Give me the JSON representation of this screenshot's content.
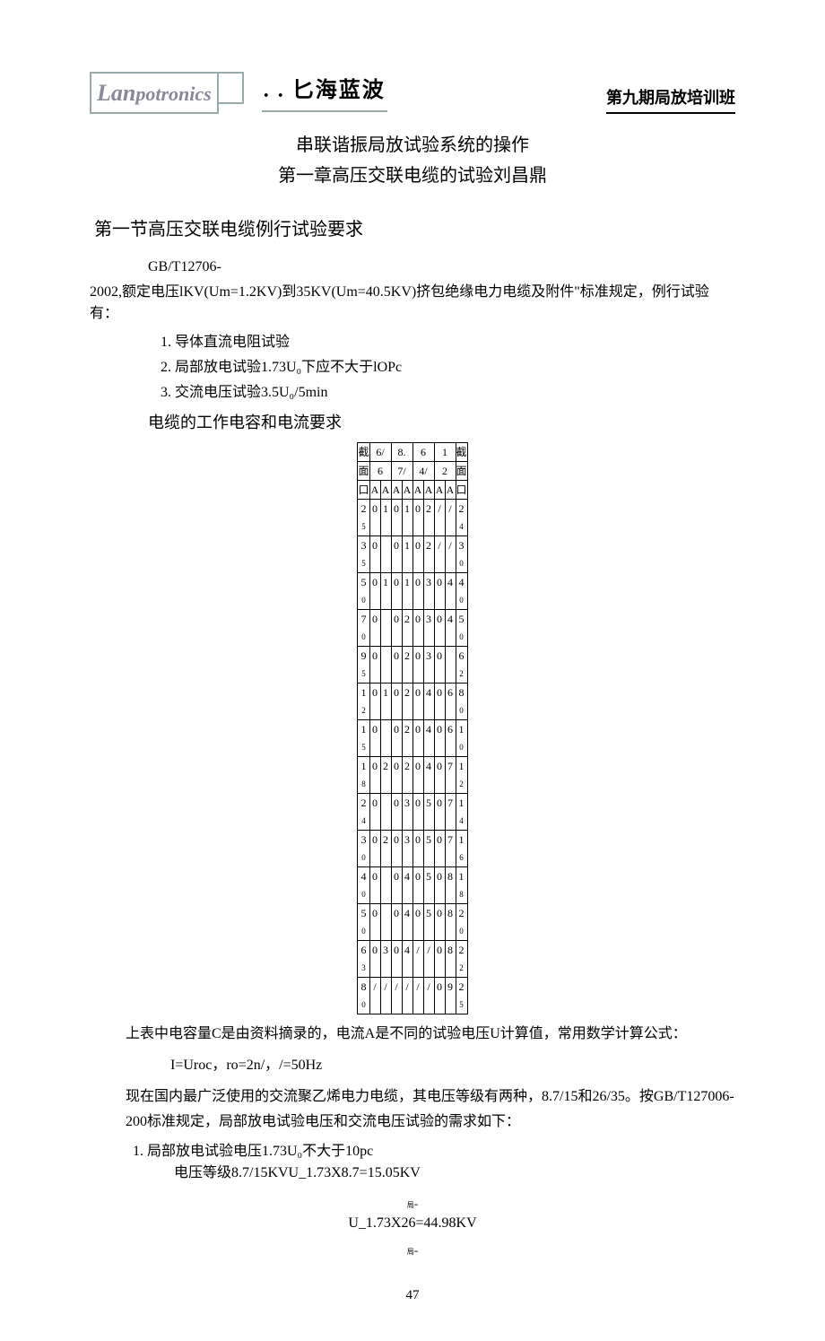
{
  "header": {
    "logo_text": "Lanpotronics",
    "logo_cn_prefix": "匕",
    "logo_cn": "海蓝波",
    "right_text": "第九期局放培训班"
  },
  "title": {
    "line1": "串联谐振局放试验系统的操作",
    "line2": "第一章高压交联电缆的试验刘昌鼎"
  },
  "section1": {
    "title": "第一节高压交联电缆例行试验要求",
    "standard_ref": "GB/T12706-",
    "standard_body": "2002,额定电压lKV(Um=1.2KV)到35KV(Um=40.5KV)挤包绝缘电力电缆及附件\"标准规定，例行试验有：",
    "items": [
      "导体直流电阻试验",
      "局部放电试验1.73U₀下应不大于lOPc",
      "交流电压试验3.5U₀/5min"
    ],
    "table_title": "电缆的工作电容和电流要求"
  },
  "table": {
    "header_row1": [
      "截",
      "6/",
      "",
      "8.",
      "",
      "6",
      "",
      "1",
      "",
      "截"
    ],
    "header_row1b": [
      "面",
      "6",
      "",
      "7/",
      "",
      "4/",
      "",
      "2",
      "",
      "面"
    ],
    "header_row2": [
      "口",
      "A",
      "A",
      "A",
      "A",
      "A",
      "A",
      "A",
      "A",
      "口"
    ],
    "rows": [
      [
        "2",
        "0",
        "1",
        "0",
        "1",
        "0",
        "2",
        "/",
        "/",
        "2"
      ],
      [
        "5",
        "",
        "",
        "",
        "",
        "",
        "",
        "",
        "",
        "4"
      ],
      [
        "3",
        "0",
        "",
        "0",
        "1",
        "0",
        "2",
        "/",
        "/",
        "3"
      ],
      [
        "5",
        "",
        "",
        "",
        "",
        "",
        "",
        "",
        "",
        "0"
      ],
      [
        "5",
        "0",
        "1",
        "0",
        "1",
        "0",
        "3",
        "0",
        "4",
        "4"
      ],
      [
        "0",
        "",
        "",
        "",
        "",
        "",
        "",
        "",
        "",
        "0"
      ],
      [
        "7",
        "0",
        "",
        "0",
        "2",
        "0",
        "3",
        "0",
        "4",
        "5"
      ],
      [
        "0",
        "",
        "",
        "",
        "",
        "",
        "",
        "",
        "",
        "0"
      ],
      [
        "9",
        "0",
        "",
        "0",
        "2",
        "0",
        "3",
        "0",
        "",
        "6"
      ],
      [
        "5",
        "",
        "",
        "",
        "",
        "",
        "",
        "",
        "",
        "2"
      ],
      [
        "1",
        "0",
        "1",
        "0",
        "2",
        "0",
        "4",
        "0",
        "6",
        "8"
      ],
      [
        "2",
        "",
        "",
        "",
        "",
        "",
        "",
        "",
        "",
        "0"
      ],
      [
        "1",
        "0",
        "",
        "0",
        "2",
        "0",
        "4",
        "0",
        "6",
        "1"
      ],
      [
        "5",
        "",
        "",
        "",
        "",
        "",
        "",
        "",
        "",
        "0"
      ],
      [
        "1",
        "0",
        "2",
        "0",
        "2",
        "0",
        "4",
        "0",
        "7",
        "1"
      ],
      [
        "8",
        "",
        "",
        "",
        "",
        "",
        "",
        "",
        "",
        "2"
      ],
      [
        "2",
        "0",
        "",
        "0",
        "3",
        "0",
        "5",
        "0",
        "7",
        "1"
      ],
      [
        "4",
        "",
        "",
        "",
        "",
        "",
        "",
        "",
        "",
        "4"
      ],
      [
        "3",
        "0",
        "2",
        "0",
        "3",
        "0",
        "5",
        "0",
        "7",
        "1"
      ],
      [
        "0",
        "",
        "",
        "",
        "",
        "",
        "",
        "",
        "",
        "6"
      ],
      [
        "4",
        "0",
        "",
        "0",
        "4",
        "0",
        "5",
        "0",
        "8",
        "1"
      ],
      [
        "0",
        "",
        "",
        "",
        "",
        "",
        "",
        "",
        "",
        "8"
      ],
      [
        "5",
        "0",
        "",
        "0",
        "4",
        "0",
        "5",
        "0",
        "8",
        "2"
      ],
      [
        "0",
        "",
        "",
        "",
        "",
        "",
        "",
        "",
        "",
        "0"
      ],
      [
        "6",
        "0",
        "3",
        "0",
        "4",
        "/",
        "/",
        "0",
        "8",
        "2"
      ],
      [
        "3",
        "",
        "",
        "",
        "",
        "",
        "",
        "",
        "",
        "2"
      ],
      [
        "8",
        "/",
        "/",
        "/",
        "/",
        "/",
        "/",
        "0",
        "9",
        "2"
      ],
      [
        "0",
        "",
        "",
        "",
        "",
        "",
        "",
        "",
        "",
        "5"
      ]
    ]
  },
  "body": {
    "p1": "上表中电容量C是由资料摘录的，电流A是不同的试验电压U计算值，常用数学计算公式：",
    "formula1": "I=Uroc，ro=2n/，/=50Hz",
    "p2": "现在国内最广泛使用的交流聚乙烯电力电缆，其电压等级有两种，8.7/15和26/35。按GB/T127006-200标准规定，局部放电试验电压和交流电压试验的需求如下：",
    "calc1_title": "局部放电试验电压1.73U₀不大于10pc",
    "calc1_line1": "电压等级8.7/15KVU_1.73X8.7=15.05KV",
    "calc1_sub1": "局=",
    "calc1_line2": "U_1.73X26=44.98KV",
    "calc1_sub2": "局="
  },
  "page_number": "47"
}
